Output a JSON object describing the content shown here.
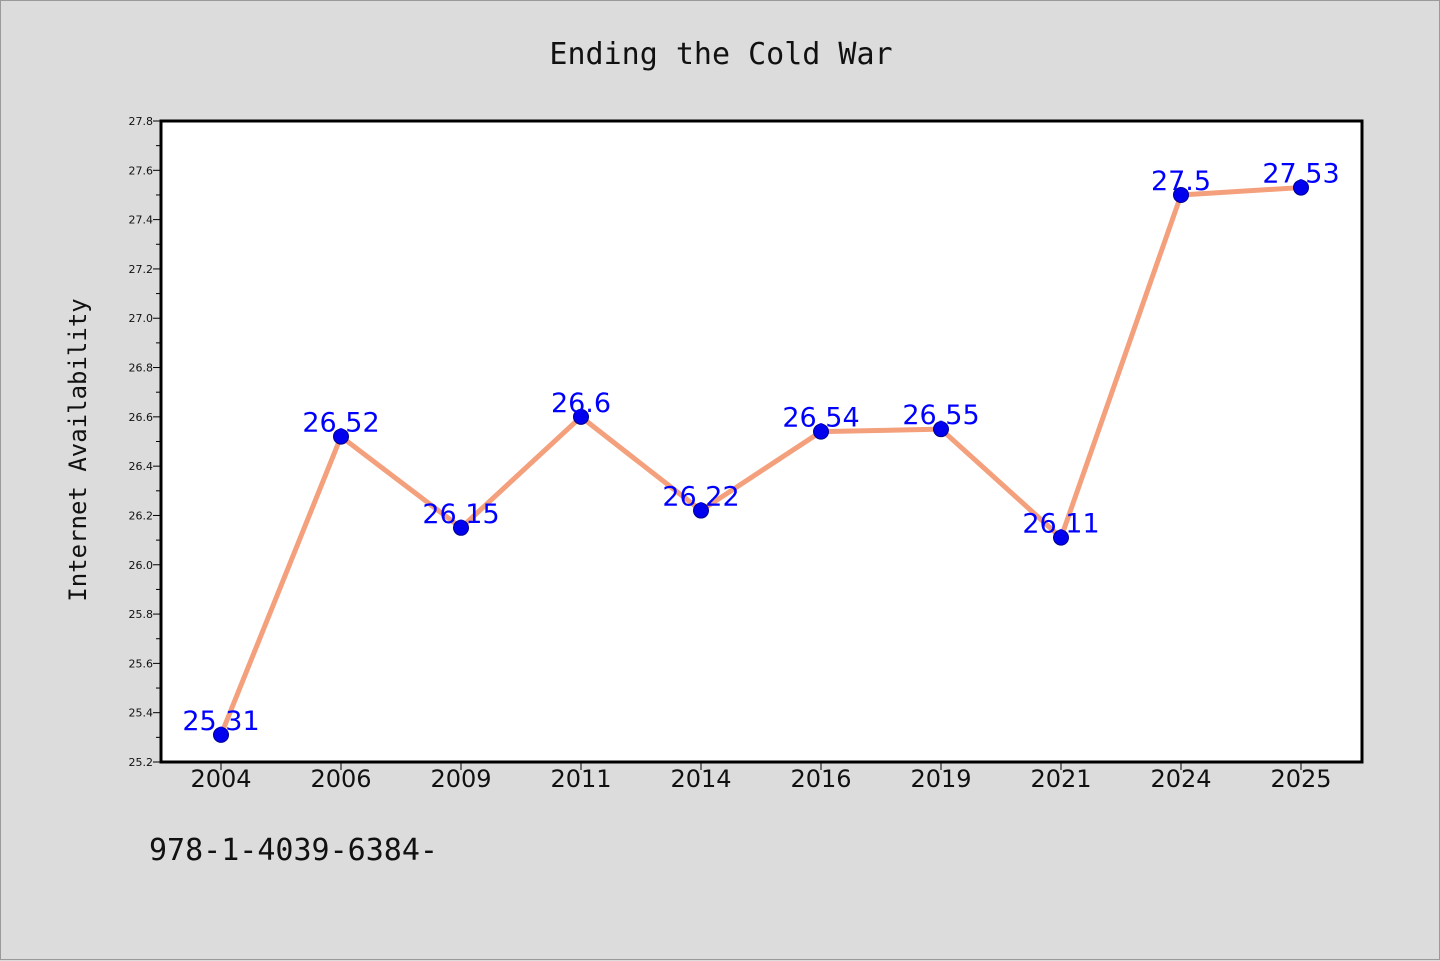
{
  "chart_data": {
    "type": "line",
    "title": "Ending the Cold War",
    "xlabel": "",
    "ylabel": "Internet Availability",
    "categories": [
      "2004",
      "2006",
      "2009",
      "2011",
      "2014",
      "2016",
      "2019",
      "2021",
      "2024",
      "2025"
    ],
    "series": [
      {
        "values": [
          25.31,
          26.52,
          26.15,
          26.6,
          26.22,
          26.54,
          26.55,
          26.11,
          27.5,
          27.53
        ],
        "data_labels": [
          "25.31",
          "26.52",
          "26.15",
          "26.6",
          "26.22",
          "26.54",
          "26.55",
          "26.11",
          "27.5",
          "27.53"
        ]
      }
    ],
    "ylim": [
      25.2,
      27.8
    ],
    "yticks": [
      "25.2",
      "25.4",
      "25.6",
      "25.8",
      "26.0",
      "26.2",
      "26.4",
      "26.6",
      "26.8",
      "27.0",
      "27.2",
      "27.4",
      "27.6",
      "27.8"
    ],
    "grid": false,
    "legend": "none",
    "colors": {
      "line": "#f4a07c",
      "marker": "#0000ee",
      "data_label": "#0000ff",
      "plot_background": "#ffffff",
      "figure_background": "#dcdcdc"
    }
  },
  "footnote": "978-1-4039-6384-"
}
